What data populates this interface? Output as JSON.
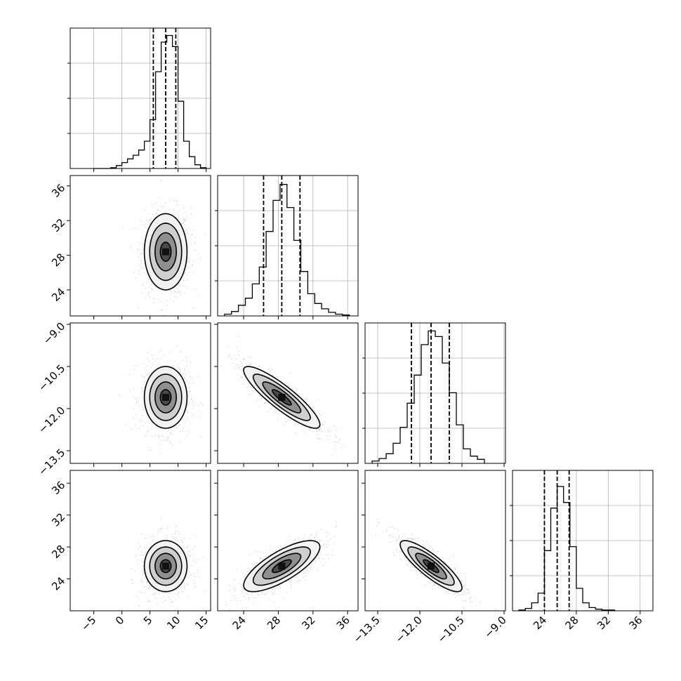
{
  "chart_data": {
    "type": "corner",
    "params": [
      {
        "ticks": [
          -5,
          0,
          5,
          10,
          15
        ],
        "tick_labels": [
          "−5",
          "0",
          "5",
          "10",
          "15"
        ],
        "range": [
          -9.2,
          15.8
        ],
        "quantiles": [
          5.6,
          7.8,
          9.6
        ],
        "hist": {
          "edges": [
            -5,
            -4,
            -3,
            -2,
            -1,
            0,
            1,
            2,
            3,
            4,
            5,
            6,
            7,
            8,
            9,
            10,
            11,
            12,
            13,
            14,
            15
          ],
          "counts": [
            0,
            0,
            0,
            1,
            4,
            8,
            13,
            18,
            25,
            37,
            66,
            131,
            171,
            180,
            165,
            91,
            37,
            16,
            5,
            1
          ]
        },
        "ylim": [
          0,
          190
        ]
      },
      {
        "ticks": [
          24,
          28,
          32,
          36
        ],
        "tick_labels": [
          "24",
          "28",
          "32",
          "36"
        ],
        "range": [
          21.0,
          37.2
        ],
        "quantiles": [
          26.3,
          28.4,
          30.5
        ],
        "hist": {
          "edges": [
            21.8,
            22.6,
            23.4,
            24.2,
            25.0,
            25.8,
            26.6,
            27.4,
            28.2,
            29.0,
            29.8,
            30.6,
            31.4,
            32.2,
            33.0,
            33.8,
            34.6,
            35.4,
            36.2
          ],
          "counts": [
            2,
            5,
            12,
            20,
            36,
            55,
            95,
            130,
            148,
            122,
            85,
            50,
            25,
            14,
            8,
            4,
            2,
            1
          ]
        },
        "ylim": [
          0,
          158
        ]
      },
      {
        "ticks": [
          -13.5,
          -12.0,
          -10.5,
          -9.0
        ],
        "tick_labels": [
          "−13.5",
          "−12.0",
          "−10.5",
          "−9.0"
        ],
        "range": [
          -13.95,
          -8.95
        ],
        "quantiles": [
          -12.3,
          -11.6,
          -10.95
        ],
        "hist": {
          "edges": [
            -13.7,
            -13.45,
            -13.2,
            -12.95,
            -12.7,
            -12.45,
            -12.2,
            -11.95,
            -11.7,
            -11.45,
            -11.2,
            -10.95,
            -10.7,
            -10.45,
            -10.2,
            -9.95,
            -9.7
          ],
          "counts": [
            3,
            6,
            12,
            25,
            45,
            75,
            110,
            148,
            165,
            158,
            125,
            88,
            48,
            18,
            9,
            5
          ]
        },
        "ylim": [
          0,
          175
        ]
      },
      {
        "ticks": [
          24,
          28,
          32,
          36
        ],
        "tick_labels": [
          "24",
          "28",
          "32",
          "36"
        ],
        "range": [
          20.0,
          37.6
        ],
        "quantiles": [
          24.0,
          25.6,
          27.1
        ],
        "hist": {
          "edges": [
            20.8,
            21.6,
            22.4,
            23.2,
            24.0,
            24.8,
            25.6,
            26.4,
            27.2,
            28.0,
            28.8,
            29.6,
            30.4,
            31.2,
            32.0,
            32.8
          ],
          "counts": [
            1,
            3,
            10,
            22,
            75,
            128,
            155,
            135,
            80,
            28,
            10,
            4,
            2,
            1,
            1
          ]
        },
        "ylim": [
          0,
          175
        ]
      }
    ],
    "pairs": [
      {
        "row": 1,
        "col": 0,
        "mean": [
          7.8,
          28.4
        ],
        "sd": [
          1.9,
          2.2
        ],
        "rho": 0.0
      },
      {
        "row": 2,
        "col": 0,
        "mean": [
          7.8,
          -11.6
        ],
        "sd": [
          1.9,
          0.55
        ],
        "rho": 0.0
      },
      {
        "row": 2,
        "col": 1,
        "mean": [
          28.4,
          -11.6
        ],
        "sd": [
          2.2,
          0.55
        ],
        "rho": -0.88
      },
      {
        "row": 3,
        "col": 0,
        "mean": [
          7.8,
          25.6
        ],
        "sd": [
          1.9,
          1.6
        ],
        "rho": 0.0
      },
      {
        "row": 3,
        "col": 1,
        "mean": [
          28.4,
          25.6
        ],
        "sd": [
          2.2,
          1.6
        ],
        "rho": 0.75
      },
      {
        "row": 3,
        "col": 2,
        "mean": [
          -11.6,
          25.6
        ],
        "sd": [
          0.55,
          1.6
        ],
        "rho": -0.85
      }
    ],
    "contour_levels_sigma": [
      0.5,
      1.0,
      1.5,
      2.0
    ],
    "grid": true,
    "colors": {
      "line": "#000000",
      "grid": "#b0b0b0",
      "points": "#888888",
      "density_dark": "#111111",
      "density_light": "#f2f2f2"
    }
  }
}
